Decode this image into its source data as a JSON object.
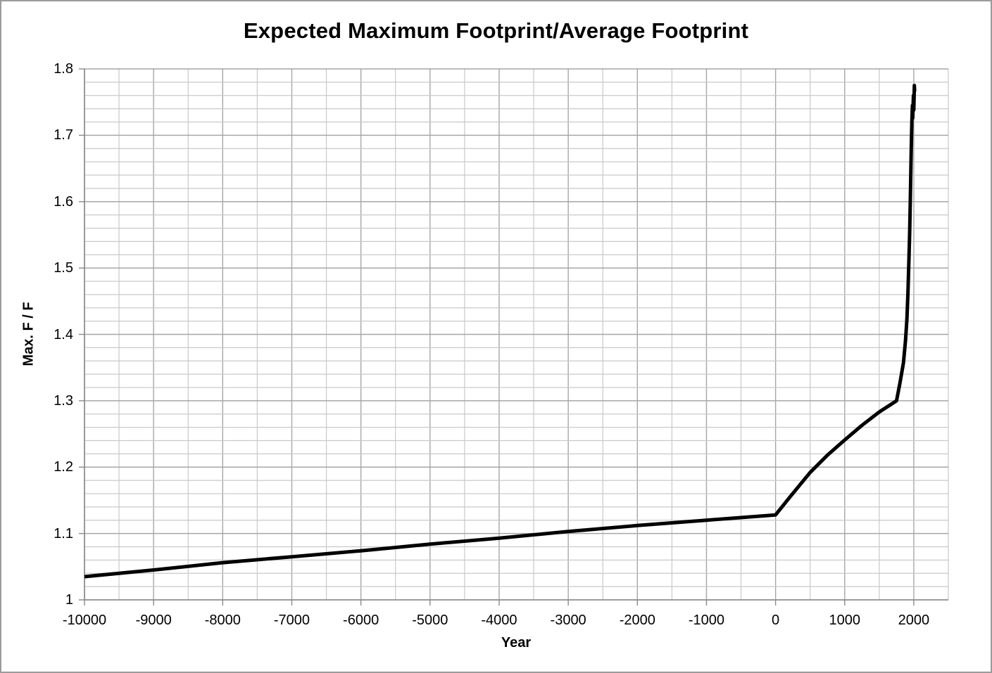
{
  "frame": {
    "border_color": "#9b9b9b",
    "background": "#ffffff"
  },
  "chart_data": {
    "type": "line",
    "title": "Expected Maximum Footprint/Average Footprint",
    "xlabel": "Year",
    "ylabel": "Max. F / F",
    "xlim": [
      -10000,
      2500
    ],
    "ylim": [
      1,
      1.8
    ],
    "x_tick_values": [
      -10000,
      -9000,
      -8000,
      -7000,
      -6000,
      -5000,
      -4000,
      -3000,
      -2000,
      -1000,
      0,
      1000,
      2000
    ],
    "x_tick_labels": [
      "-10000",
      "-9000",
      "-8000",
      "-7000",
      "-6000",
      "-5000",
      "-4000",
      "-3000",
      "-2000",
      "-1000",
      "0",
      "1000",
      "2000"
    ],
    "y_tick_values": [
      1.8,
      1.7,
      1.6,
      1.5,
      1.4,
      1.3,
      1.2,
      1.1,
      1
    ],
    "y_tick_labels": [
      "1.8",
      "1.7",
      "1.6",
      "1.5",
      "1.4",
      "1.3",
      "1.2",
      "1.1",
      "1"
    ],
    "x_minor_step": 500,
    "x_major_step": 1000,
    "y_minor_step": 0.02,
    "y_major_step": 0.1,
    "grid": {
      "show": true,
      "minor_color": "#c9c9c9",
      "major_color": "#a6a6a6",
      "axis_color": "#898989"
    },
    "legend": "none",
    "series": [
      {
        "color": "#000000",
        "stroke_width": 5,
        "points": [
          [
            -10000,
            1.035
          ],
          [
            -9000,
            1.045
          ],
          [
            -8000,
            1.056
          ],
          [
            -7000,
            1.065
          ],
          [
            -6000,
            1.074
          ],
          [
            -5000,
            1.084
          ],
          [
            -4000,
            1.093
          ],
          [
            -3000,
            1.103
          ],
          [
            -2000,
            1.112
          ],
          [
            -1000,
            1.12
          ],
          [
            0,
            1.128
          ],
          [
            200,
            1.154
          ],
          [
            500,
            1.192
          ],
          [
            750,
            1.218
          ],
          [
            1000,
            1.241
          ],
          [
            1250,
            1.263
          ],
          [
            1500,
            1.283
          ],
          [
            1750,
            1.3
          ],
          [
            1800,
            1.327
          ],
          [
            1850,
            1.357
          ],
          [
            1880,
            1.39
          ],
          [
            1900,
            1.422
          ],
          [
            1915,
            1.462
          ],
          [
            1930,
            1.512
          ],
          [
            1940,
            1.551
          ],
          [
            1950,
            1.603
          ],
          [
            1958,
            1.65
          ],
          [
            1965,
            1.69
          ],
          [
            1972,
            1.721
          ],
          [
            1980,
            1.745
          ],
          [
            1985,
            1.726
          ],
          [
            1990,
            1.743
          ],
          [
            1995,
            1.76
          ],
          [
            2000,
            1.738
          ],
          [
            2004,
            1.754
          ],
          [
            2008,
            1.775
          ],
          [
            2012,
            1.766
          ]
        ]
      }
    ]
  }
}
